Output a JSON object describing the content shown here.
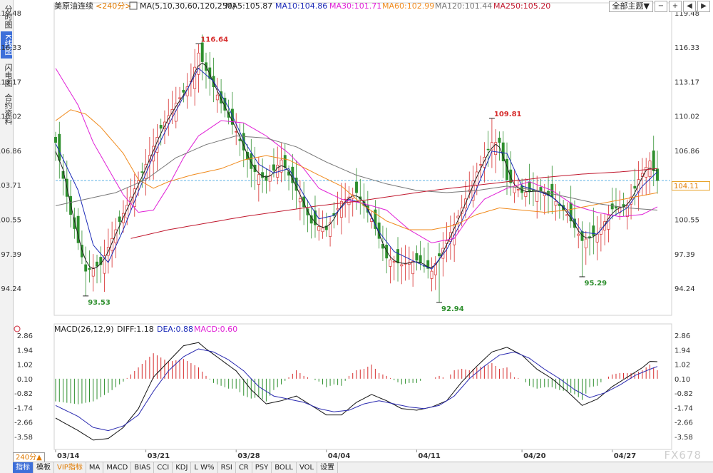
{
  "sidebar": {
    "items": [
      {
        "label": "分时图"
      },
      {
        "label": "K线图",
        "active": true
      },
      {
        "label": "闪电图"
      },
      {
        "label": "合约资料"
      }
    ]
  },
  "toolbar": {
    "theme_label": "全部主题▼"
  },
  "header": {
    "symbol": "美原油连续",
    "period": "<240分>",
    "ma_legend": [
      {
        "text": "MA(5,10,30,60,120,250)",
        "color": "#222222"
      },
      {
        "text": "MA5:105.87",
        "color": "#222222"
      },
      {
        "text": "MA10:104.86",
        "color": "#1c2bb8"
      },
      {
        "text": "MA30:101.71",
        "color": "#e020d6"
      },
      {
        "text": "MA60:102.99",
        "color": "#f08a1c"
      },
      {
        "text": "MA120:101.44",
        "color": "#777777"
      },
      {
        "text": "MA250:105.20",
        "color": "#c0182e"
      }
    ]
  },
  "macd_header": {
    "title": "MACD(26,12,9)",
    "diff": "DIFF:1.18",
    "dea": "DEA:0.88",
    "macd": "MACD:0.60"
  },
  "price_tag": "104.11",
  "period_badge": "240分▲",
  "watermark": "FX678",
  "bottom_tabs": [
    {
      "label": "指标",
      "active": true
    },
    {
      "label": "模板"
    },
    {
      "label": "VIP指标",
      "vip": true
    },
    {
      "label": "MA"
    },
    {
      "label": "MACD"
    },
    {
      "label": "BIAS"
    },
    {
      "label": "CCI"
    },
    {
      "label": "KDJ"
    },
    {
      "label": "L W%"
    },
    {
      "label": "RSI"
    },
    {
      "label": "CR"
    },
    {
      "label": "PSY"
    },
    {
      "label": "BOLL"
    },
    {
      "label": "VOL"
    },
    {
      "label": "设置"
    }
  ],
  "colors": {
    "up": "#d62b2b",
    "down": "#2e8f2e",
    "ma5": "#222222",
    "ma10": "#1c2bb8",
    "ma30": "#e020d6",
    "ma60": "#f08a1c",
    "ma120": "#777777",
    "ma250": "#c0182e",
    "diff": "#111111",
    "dea": "#2a2ab0",
    "macd_dot": "#e020d6",
    "dea_text": "#1c2bb8"
  },
  "chart_data": [
    {
      "type": "candlestick",
      "y_ticks": [
        "119.48",
        "116.33",
        "113.17",
        "110.02",
        "106.86",
        "103.71",
        "100.55",
        "97.39",
        "94.24"
      ],
      "ylim": [
        94.24,
        119.48
      ],
      "x_ticks": [
        {
          "label": "03/14",
          "index": 0
        },
        {
          "label": "03/21",
          "index": 24
        },
        {
          "label": "03/28",
          "index": 48
        },
        {
          "label": "04/04",
          "index": 72
        },
        {
          "label": "04/11",
          "index": 96
        },
        {
          "label": "04/20",
          "index": 124
        },
        {
          "label": "04/27",
          "index": 148
        }
      ],
      "annotations": [
        {
          "text": "116.64",
          "value": 116.64,
          "index": 38,
          "kind": "high"
        },
        {
          "text": "93.53",
          "value": 93.53,
          "index": 8,
          "kind": "low"
        },
        {
          "text": "92.94",
          "value": 92.94,
          "index": 102,
          "kind": "low"
        },
        {
          "text": "109.81",
          "value": 109.81,
          "index": 116,
          "kind": "high"
        },
        {
          "text": "95.29",
          "value": 95.29,
          "index": 140,
          "kind": "low"
        }
      ],
      "last_price": 104.11,
      "close_keypoints": [
        [
          0,
          107.6
        ],
        [
          4,
          101.0
        ],
        [
          8,
          95.8
        ],
        [
          12,
          96.4
        ],
        [
          16,
          99.6
        ],
        [
          20,
          102.6
        ],
        [
          24,
          105.6
        ],
        [
          28,
          108.9
        ],
        [
          32,
          111.2
        ],
        [
          36,
          113.2
        ],
        [
          38,
          115.8
        ],
        [
          40,
          114.2
        ],
        [
          44,
          111.2
        ],
        [
          48,
          108.6
        ],
        [
          52,
          105.2
        ],
        [
          56,
          104.1
        ],
        [
          60,
          106.0
        ],
        [
          64,
          103.2
        ],
        [
          68,
          100.2
        ],
        [
          72,
          99.6
        ],
        [
          76,
          102.2
        ],
        [
          80,
          103.0
        ],
        [
          84,
          100.6
        ],
        [
          88,
          97.0
        ],
        [
          92,
          96.4
        ],
        [
          96,
          96.8
        ],
        [
          100,
          95.8
        ],
        [
          104,
          98.6
        ],
        [
          108,
          101.6
        ],
        [
          112,
          104.9
        ],
        [
          116,
          107.6
        ],
        [
          118,
          107.6
        ],
        [
          120,
          104.2
        ],
        [
          124,
          103.0
        ],
        [
          128,
          103.2
        ],
        [
          132,
          102.6
        ],
        [
          136,
          101.0
        ],
        [
          140,
          98.6
        ],
        [
          144,
          99.2
        ],
        [
          148,
          101.5
        ],
        [
          152,
          101.8
        ],
        [
          155,
          104.2
        ],
        [
          158,
          105.9
        ],
        [
          160,
          104.1
        ]
      ],
      "ma_keypoints": {
        "ma10": [
          [
            0,
            107.5
          ],
          [
            6,
            103.2
          ],
          [
            10,
            98.2
          ],
          [
            14,
            96.6
          ],
          [
            18,
            99.6
          ],
          [
            22,
            103.1
          ],
          [
            26,
            106.4
          ],
          [
            30,
            109.2
          ],
          [
            34,
            111.8
          ],
          [
            38,
            114.4
          ],
          [
            42,
            113.2
          ],
          [
            46,
            110.8
          ],
          [
            50,
            107.8
          ],
          [
            54,
            105.6
          ],
          [
            58,
            104.8
          ],
          [
            62,
            105.2
          ],
          [
            66,
            102.8
          ],
          [
            70,
            100.6
          ],
          [
            74,
            100.9
          ],
          [
            78,
            102.4
          ],
          [
            82,
            102.0
          ],
          [
            86,
            99.4
          ],
          [
            90,
            97.6
          ],
          [
            96,
            96.6
          ],
          [
            100,
            96.0
          ],
          [
            104,
            97.8
          ],
          [
            108,
            100.4
          ],
          [
            112,
            103.4
          ],
          [
            116,
            106.8
          ],
          [
            120,
            106.6
          ],
          [
            124,
            103.6
          ],
          [
            128,
            103.2
          ],
          [
            132,
            102.6
          ],
          [
            136,
            101.4
          ],
          [
            140,
            99.4
          ],
          [
            144,
            99.2
          ],
          [
            148,
            100.8
          ],
          [
            152,
            101.6
          ],
          [
            156,
            103.6
          ],
          [
            160,
            104.9
          ]
        ],
        "ma30": [
          [
            0,
            114.4
          ],
          [
            6,
            111.0
          ],
          [
            10,
            107.6
          ],
          [
            14,
            105.2
          ],
          [
            18,
            102.8
          ],
          [
            22,
            101.2
          ],
          [
            26,
            101.4
          ],
          [
            30,
            103.6
          ],
          [
            34,
            106.2
          ],
          [
            38,
            108.2
          ],
          [
            44,
            109.6
          ],
          [
            50,
            109.4
          ],
          [
            56,
            108.2
          ],
          [
            62,
            106.6
          ],
          [
            66,
            105.2
          ],
          [
            70,
            103.4
          ],
          [
            76,
            102.4
          ],
          [
            82,
            102.0
          ],
          [
            88,
            101.4
          ],
          [
            94,
            99.6
          ],
          [
            100,
            98.4
          ],
          [
            106,
            98.8
          ],
          [
            110,
            100.8
          ],
          [
            114,
            102.4
          ],
          [
            120,
            103.4
          ],
          [
            126,
            104.0
          ],
          [
            132,
            103.2
          ],
          [
            138,
            101.8
          ],
          [
            144,
            101.2
          ],
          [
            150,
            100.8
          ],
          [
            156,
            101.0
          ],
          [
            160,
            101.7
          ]
        ],
        "ma60": [
          [
            0,
            109.6
          ],
          [
            4,
            110.6
          ],
          [
            8,
            110.2
          ],
          [
            12,
            109.0
          ],
          [
            18,
            106.6
          ],
          [
            22,
            104.2
          ],
          [
            26,
            103.4
          ],
          [
            30,
            104.0
          ],
          [
            36,
            104.6
          ],
          [
            44,
            105.2
          ],
          [
            50,
            106.0
          ],
          [
            56,
            106.4
          ],
          [
            62,
            106.0
          ],
          [
            70,
            104.6
          ],
          [
            76,
            103.6
          ],
          [
            82,
            101.8
          ],
          [
            88,
            100.4
          ],
          [
            94,
            99.6
          ],
          [
            100,
            99.6
          ],
          [
            106,
            100.0
          ],
          [
            112,
            101.0
          ],
          [
            118,
            101.6
          ],
          [
            124,
            101.4
          ],
          [
            130,
            101.2
          ],
          [
            136,
            101.4
          ],
          [
            142,
            101.8
          ],
          [
            148,
            102.2
          ],
          [
            154,
            102.6
          ],
          [
            160,
            103.0
          ]
        ],
        "ma120": [
          [
            0,
            101.8
          ],
          [
            8,
            102.4
          ],
          [
            16,
            103.0
          ],
          [
            24,
            104.2
          ],
          [
            32,
            106.2
          ],
          [
            40,
            107.4
          ],
          [
            48,
            108.2
          ],
          [
            56,
            108.0
          ],
          [
            64,
            107.2
          ],
          [
            72,
            105.8
          ],
          [
            80,
            104.6
          ],
          [
            88,
            103.8
          ],
          [
            96,
            103.2
          ],
          [
            104,
            103.0
          ],
          [
            112,
            103.2
          ],
          [
            120,
            103.6
          ],
          [
            128,
            103.2
          ],
          [
            136,
            102.6
          ],
          [
            144,
            102.0
          ],
          [
            152,
            101.6
          ],
          [
            160,
            101.4
          ]
        ],
        "ma250": [
          [
            20,
            98.8
          ],
          [
            30,
            99.6
          ],
          [
            40,
            100.2
          ],
          [
            50,
            100.8
          ],
          [
            60,
            101.3
          ],
          [
            70,
            101.8
          ],
          [
            80,
            102.2
          ],
          [
            90,
            102.7
          ],
          [
            100,
            103.2
          ],
          [
            110,
            103.6
          ],
          [
            120,
            104.0
          ],
          [
            130,
            104.4
          ],
          [
            140,
            104.7
          ],
          [
            150,
            104.9
          ],
          [
            160,
            105.2
          ]
        ]
      }
    },
    {
      "type": "macd",
      "y_ticks": [
        "2.86",
        "1.94",
        "1.02",
        "0.10",
        "-0.82",
        "-1.74",
        "-2.66",
        "-3.58"
      ],
      "ylim": [
        -3.58,
        2.86
      ],
      "diff_keypoints": [
        [
          0,
          -2.4
        ],
        [
          6,
          -3.2
        ],
        [
          10,
          -3.8
        ],
        [
          14,
          -3.7
        ],
        [
          18,
          -3.0
        ],
        [
          22,
          -1.8
        ],
        [
          26,
          0.2
        ],
        [
          30,
          1.2
        ],
        [
          34,
          2.2
        ],
        [
          38,
          2.4
        ],
        [
          40,
          2.0
        ],
        [
          44,
          1.3
        ],
        [
          48,
          0.6
        ],
        [
          52,
          -0.6
        ],
        [
          56,
          -1.5
        ],
        [
          60,
          -1.3
        ],
        [
          64,
          -1.0
        ],
        [
          68,
          -1.6
        ],
        [
          72,
          -2.2
        ],
        [
          76,
          -2.2
        ],
        [
          80,
          -1.4
        ],
        [
          84,
          -0.9
        ],
        [
          88,
          -1.3
        ],
        [
          92,
          -1.8
        ],
        [
          96,
          -1.9
        ],
        [
          100,
          -1.7
        ],
        [
          104,
          -1.3
        ],
        [
          108,
          -0.1
        ],
        [
          112,
          0.9
        ],
        [
          116,
          1.8
        ],
        [
          120,
          2.1
        ],
        [
          124,
          1.6
        ],
        [
          128,
          0.7
        ],
        [
          132,
          0.1
        ],
        [
          136,
          -0.7
        ],
        [
          140,
          -1.6
        ],
        [
          144,
          -1.2
        ],
        [
          148,
          -0.4
        ],
        [
          152,
          0.2
        ],
        [
          156,
          0.8
        ],
        [
          158,
          1.2
        ],
        [
          160,
          1.18
        ]
      ],
      "dea_keypoints": [
        [
          0,
          -1.6
        ],
        [
          6,
          -2.3
        ],
        [
          10,
          -3.0
        ],
        [
          14,
          -3.2
        ],
        [
          18,
          -2.9
        ],
        [
          22,
          -2.2
        ],
        [
          26,
          -0.7
        ],
        [
          30,
          0.6
        ],
        [
          34,
          1.5
        ],
        [
          38,
          2.0
        ],
        [
          42,
          1.8
        ],
        [
          46,
          1.3
        ],
        [
          50,
          0.6
        ],
        [
          54,
          -0.4
        ],
        [
          58,
          -1.0
        ],
        [
          62,
          -1.2
        ],
        [
          66,
          -1.4
        ],
        [
          70,
          -1.8
        ],
        [
          74,
          -2.0
        ],
        [
          78,
          -1.9
        ],
        [
          82,
          -1.5
        ],
        [
          86,
          -1.3
        ],
        [
          90,
          -1.5
        ],
        [
          94,
          -1.7
        ],
        [
          98,
          -1.8
        ],
        [
          102,
          -1.6
        ],
        [
          106,
          -1.0
        ],
        [
          110,
          0.1
        ],
        [
          114,
          0.9
        ],
        [
          118,
          1.6
        ],
        [
          122,
          1.8
        ],
        [
          126,
          1.4
        ],
        [
          130,
          0.7
        ],
        [
          134,
          0.1
        ],
        [
          138,
          -0.6
        ],
        [
          142,
          -1.1
        ],
        [
          146,
          -0.8
        ],
        [
          150,
          -0.3
        ],
        [
          154,
          0.3
        ],
        [
          158,
          0.7
        ],
        [
          160,
          0.88
        ]
      ]
    }
  ]
}
